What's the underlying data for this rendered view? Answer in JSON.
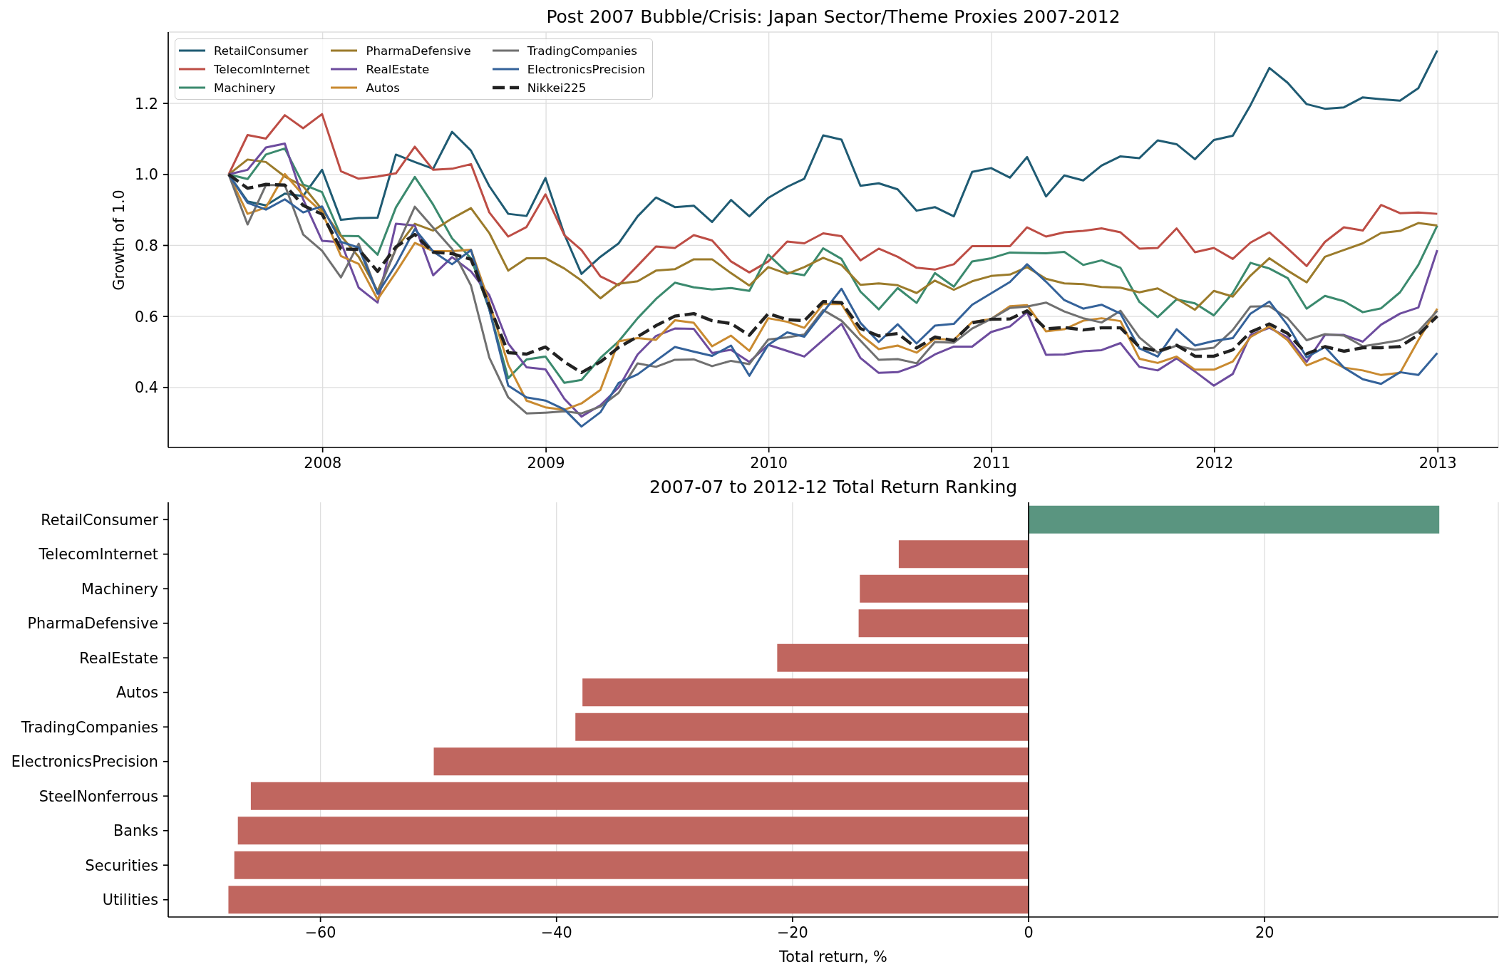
{
  "chart_data": [
    {
      "type": "line",
      "title": "Post 2007 Bubble/Crisis: Japan Sector/Theme Proxies 2007-2012",
      "ylabel": "Growth of 1.0",
      "x": [
        "2007-07-31",
        "2007-08-31",
        "2007-09-30",
        "2007-10-31",
        "2007-11-30",
        "2007-12-31",
        "2008-01-31",
        "2008-02-29",
        "2008-03-31",
        "2008-04-30",
        "2008-05-31",
        "2008-06-30",
        "2008-07-31",
        "2008-08-31",
        "2008-09-30",
        "2008-10-31",
        "2008-11-30",
        "2008-12-31",
        "2009-01-31",
        "2009-02-28",
        "2009-03-31",
        "2009-04-30",
        "2009-05-31",
        "2009-06-30",
        "2009-07-31",
        "2009-08-31",
        "2009-09-30",
        "2009-10-31",
        "2009-11-30",
        "2009-12-31",
        "2010-01-31",
        "2010-02-28",
        "2010-03-31",
        "2010-04-30",
        "2010-05-31",
        "2010-06-30",
        "2010-07-31",
        "2010-08-31",
        "2010-09-30",
        "2010-10-31",
        "2010-11-30",
        "2010-12-31",
        "2011-01-31",
        "2011-02-28",
        "2011-03-31",
        "2011-04-30",
        "2011-05-31",
        "2011-06-30",
        "2011-07-31",
        "2011-08-31",
        "2011-09-30",
        "2011-10-31",
        "2011-11-30",
        "2011-12-31",
        "2012-01-31",
        "2012-02-29",
        "2012-03-31",
        "2012-04-30",
        "2012-05-31",
        "2012-06-30",
        "2012-07-31",
        "2012-08-31",
        "2012-09-30",
        "2012-10-31",
        "2012-11-30",
        "2012-12-31"
      ],
      "xlim": [
        "2007-04-23",
        "2013-04-10"
      ],
      "xticks": [
        "2008",
        "2009",
        "2010",
        "2011",
        "2012",
        "2013"
      ],
      "ylim": [
        0.231,
        1.401
      ],
      "yticks": [
        0.4,
        0.6,
        0.8,
        {
          "value": 1,
          "label": "1.0"
        },
        1.2
      ],
      "grid": true,
      "legend": "top left",
      "series": [
        {
          "name": "RetailConsumer",
          "color": "#1f5b73",
          "values": [
            1.0,
            0.924,
            0.913,
            0.946,
            0.939,
            1.013,
            0.872,
            0.877,
            0.878,
            1.056,
            1.035,
            1.016,
            1.12,
            1.067,
            0.967,
            0.889,
            0.883,
            0.99,
            0.831,
            0.72,
            0.768,
            0.806,
            0.882,
            0.935,
            0.908,
            0.912,
            0.866,
            0.928,
            0.882,
            0.934,
            0.965,
            0.988,
            1.11,
            1.098,
            0.968,
            0.975,
            0.958,
            0.898,
            0.908,
            0.882,
            1.007,
            1.018,
            0.991,
            1.049,
            0.938,
            0.997,
            0.983,
            1.025,
            1.051,
            1.046,
            1.096,
            1.085,
            1.043,
            1.097,
            1.109,
            1.195,
            1.3,
            1.258,
            1.198,
            1.185,
            1.189,
            1.217,
            1.212,
            1.208,
            1.243,
            1.349
          ]
        },
        {
          "name": "TelecomInternet",
          "color": "#bd4d45",
          "values": [
            1.0,
            1.111,
            1.101,
            1.167,
            1.13,
            1.17,
            1.009,
            0.988,
            0.994,
            1.003,
            1.078,
            1.013,
            1.016,
            1.029,
            0.893,
            0.825,
            0.852,
            0.944,
            0.829,
            0.787,
            0.713,
            0.688,
            0.743,
            0.797,
            0.793,
            0.829,
            0.814,
            0.755,
            0.724,
            0.755,
            0.811,
            0.806,
            0.834,
            0.826,
            0.758,
            0.791,
            0.768,
            0.737,
            0.732,
            0.747,
            0.798,
            0.798,
            0.798,
            0.851,
            0.825,
            0.837,
            0.841,
            0.848,
            0.837,
            0.791,
            0.793,
            0.848,
            0.781,
            0.793,
            0.762,
            0.808,
            0.837,
            0.791,
            0.742,
            0.81,
            0.851,
            0.842,
            0.914,
            0.891,
            0.893,
            0.889
          ]
        },
        {
          "name": "Machinery",
          "color": "#3b8a6e",
          "values": [
            1.0,
            0.987,
            1.056,
            1.073,
            0.972,
            0.95,
            0.827,
            0.826,
            0.774,
            0.907,
            0.993,
            0.915,
            0.82,
            0.764,
            0.62,
            0.426,
            0.479,
            0.487,
            0.413,
            0.421,
            0.483,
            0.53,
            0.595,
            0.649,
            0.695,
            0.682,
            0.676,
            0.68,
            0.672,
            0.774,
            0.724,
            0.716,
            0.792,
            0.762,
            0.67,
            0.62,
            0.68,
            0.638,
            0.722,
            0.684,
            0.755,
            0.764,
            0.78,
            0.779,
            0.778,
            0.782,
            0.745,
            0.758,
            0.737,
            0.641,
            0.598,
            0.648,
            0.637,
            0.603,
            0.666,
            0.751,
            0.735,
            0.708,
            0.622,
            0.658,
            0.643,
            0.612,
            0.623,
            0.668,
            0.745,
            0.856
          ]
        },
        {
          "name": "PharmaDefensive",
          "color": "#9b7b2b",
          "values": [
            1.0,
            1.042,
            1.035,
            0.994,
            0.967,
            0.901,
            0.827,
            0.768,
            0.672,
            0.79,
            0.861,
            0.842,
            0.876,
            0.905,
            0.835,
            0.729,
            0.764,
            0.764,
            0.735,
            0.701,
            0.651,
            0.692,
            0.699,
            0.729,
            0.733,
            0.761,
            0.761,
            0.722,
            0.687,
            0.739,
            0.72,
            0.739,
            0.765,
            0.745,
            0.689,
            0.693,
            0.688,
            0.666,
            0.701,
            0.675,
            0.699,
            0.714,
            0.718,
            0.739,
            0.706,
            0.693,
            0.691,
            0.683,
            0.681,
            0.668,
            0.679,
            0.65,
            0.619,
            0.672,
            0.656,
            0.715,
            0.764,
            0.729,
            0.696,
            0.768,
            0.787,
            0.806,
            0.835,
            0.841,
            0.863,
            0.856
          ]
        },
        {
          "name": "RealEstate",
          "color": "#6d4c9e",
          "values": [
            1.0,
            1.013,
            1.076,
            1.087,
            0.93,
            0.813,
            0.809,
            0.681,
            0.639,
            0.861,
            0.856,
            0.716,
            0.767,
            0.727,
            0.66,
            0.524,
            0.457,
            0.451,
            0.368,
            0.318,
            0.35,
            0.4,
            0.493,
            0.545,
            0.566,
            0.565,
            0.497,
            0.506,
            0.472,
            0.52,
            0.503,
            0.487,
            0.534,
            0.579,
            0.483,
            0.441,
            0.443,
            0.462,
            0.493,
            0.515,
            0.515,
            0.556,
            0.572,
            0.612,
            0.492,
            0.493,
            0.502,
            0.505,
            0.525,
            0.458,
            0.448,
            0.482,
            0.445,
            0.405,
            0.438,
            0.548,
            0.568,
            0.541,
            0.472,
            0.548,
            0.548,
            0.529,
            0.577,
            0.608,
            0.625,
            0.787
          ]
        },
        {
          "name": "Autos",
          "color": "#c98a30",
          "values": [
            1.0,
            0.889,
            0.907,
            1.001,
            0.942,
            0.894,
            0.77,
            0.748,
            0.648,
            0.724,
            0.807,
            0.784,
            0.784,
            0.788,
            0.64,
            0.464,
            0.363,
            0.344,
            0.337,
            0.355,
            0.393,
            0.53,
            0.539,
            0.534,
            0.589,
            0.582,
            0.516,
            0.546,
            0.503,
            0.595,
            0.585,
            0.568,
            0.635,
            0.635,
            0.549,
            0.508,
            0.518,
            0.498,
            0.537,
            0.534,
            0.584,
            0.593,
            0.629,
            0.632,
            0.558,
            0.564,
            0.588,
            0.595,
            0.587,
            0.481,
            0.469,
            0.487,
            0.45,
            0.45,
            0.473,
            0.542,
            0.572,
            0.533,
            0.462,
            0.483,
            0.456,
            0.448,
            0.435,
            0.441,
            0.533,
            0.622
          ]
        },
        {
          "name": "TradingCompanies",
          "color": "#707070",
          "values": [
            1.0,
            0.859,
            0.97,
            0.97,
            0.831,
            0.785,
            0.71,
            0.805,
            0.665,
            0.79,
            0.909,
            0.85,
            0.79,
            0.687,
            0.484,
            0.372,
            0.327,
            0.329,
            0.333,
            0.327,
            0.346,
            0.385,
            0.468,
            0.458,
            0.478,
            0.479,
            0.46,
            0.475,
            0.466,
            0.535,
            0.541,
            0.549,
            0.618,
            0.588,
            0.532,
            0.478,
            0.48,
            0.468,
            0.528,
            0.526,
            0.566,
            0.593,
            0.624,
            0.628,
            0.639,
            0.614,
            0.595,
            0.583,
            0.616,
            0.541,
            0.498,
            0.518,
            0.506,
            0.512,
            0.562,
            0.628,
            0.629,
            0.595,
            0.533,
            0.55,
            0.546,
            0.516,
            0.524,
            0.533,
            0.558,
            0.616
          ]
        },
        {
          "name": "ElectronicsPrecision",
          "color": "#34629a",
          "values": [
            1.0,
            0.92,
            0.901,
            0.93,
            0.893,
            0.91,
            0.81,
            0.794,
            0.664,
            0.746,
            0.846,
            0.783,
            0.747,
            0.787,
            0.62,
            0.405,
            0.372,
            0.363,
            0.338,
            0.29,
            0.33,
            0.413,
            0.437,
            0.475,
            0.514,
            0.501,
            0.489,
            0.518,
            0.433,
            0.52,
            0.555,
            0.543,
            0.612,
            0.678,
            0.582,
            0.528,
            0.578,
            0.524,
            0.574,
            0.579,
            0.633,
            0.665,
            0.697,
            0.747,
            0.698,
            0.646,
            0.622,
            0.633,
            0.608,
            0.51,
            0.487,
            0.564,
            0.518,
            0.531,
            0.539,
            0.608,
            0.642,
            0.575,
            0.485,
            0.514,
            0.456,
            0.423,
            0.41,
            0.443,
            0.435,
            0.497
          ]
        },
        {
          "name": "Nikkei225",
          "color": "#222222",
          "line_style": "dashed",
          "values": [
            1.0,
            0.961,
            0.972,
            0.97,
            0.913,
            0.888,
            0.79,
            0.789,
            0.727,
            0.796,
            0.831,
            0.781,
            0.777,
            0.761,
            0.63,
            0.498,
            0.494,
            0.514,
            0.472,
            0.442,
            0.472,
            0.513,
            0.543,
            0.574,
            0.601,
            0.608,
            0.588,
            0.58,
            0.547,
            0.608,
            0.591,
            0.588,
            0.642,
            0.639,
            0.566,
            0.545,
            0.552,
            0.511,
            0.542,
            0.532,
            0.582,
            0.592,
            0.593,
            0.616,
            0.565,
            0.569,
            0.562,
            0.568,
            0.568,
            0.514,
            0.502,
            0.519,
            0.488,
            0.488,
            0.506,
            0.556,
            0.579,
            0.552,
            0.495,
            0.515,
            0.502,
            0.512,
            0.512,
            0.515,
            0.548,
            0.601
          ]
        }
      ]
    },
    {
      "type": "bar",
      "orientation": "horizontal",
      "title": "2007-07 to 2012-12 Total Return Ranking",
      "xlabel": "Total return, %",
      "categories": [
        "RetailConsumer",
        "TelecomInternet",
        "Machinery",
        "PharmaDefensive",
        "RealEstate",
        "Autos",
        "TradingCompanies",
        "ElectronicsPrecision",
        "SteelNonferrous",
        "Banks",
        "Securities",
        "Utilities"
      ],
      "values": [
        34.8,
        -11.0,
        -14.3,
        -14.4,
        -21.3,
        -37.8,
        -38.4,
        -50.4,
        -65.9,
        -67.0,
        -67.3,
        -67.8
      ],
      "colors": [
        "#5a9580",
        "#c0665f",
        "#c0665f",
        "#c0665f",
        "#c0665f",
        "#c0665f",
        "#c0665f",
        "#c0665f",
        "#c0665f",
        "#c0665f",
        "#c0665f",
        "#c0665f"
      ],
      "xlim": [
        -72.9,
        39.8
      ],
      "xticks": [
        {
          "value": -60,
          "label": "−60"
        },
        {
          "value": -40,
          "label": "−40"
        },
        {
          "value": -20,
          "label": "−20"
        },
        0,
        20
      ],
      "grid": "x",
      "ref_lines": [
        {
          "axis": "x",
          "value": 0,
          "color": "#000000"
        }
      ]
    }
  ]
}
